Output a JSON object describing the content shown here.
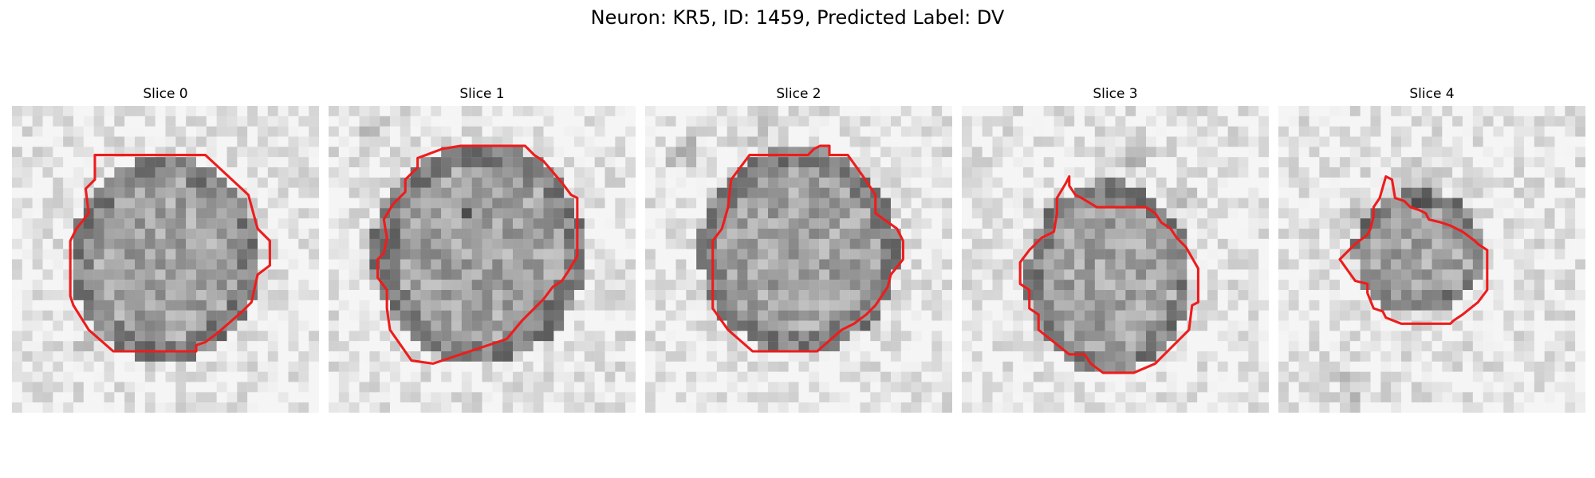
{
  "figure": {
    "title": "Neuron: KR5, ID: 1459, Predicted Label: DV",
    "contour_color": "#ee1c1c"
  },
  "slices": [
    {
      "title": "Slice 0"
    },
    {
      "title": "Slice 1"
    },
    {
      "title": "Slice 2"
    },
    {
      "title": "Slice 3"
    },
    {
      "title": "Slice 4"
    }
  ]
}
